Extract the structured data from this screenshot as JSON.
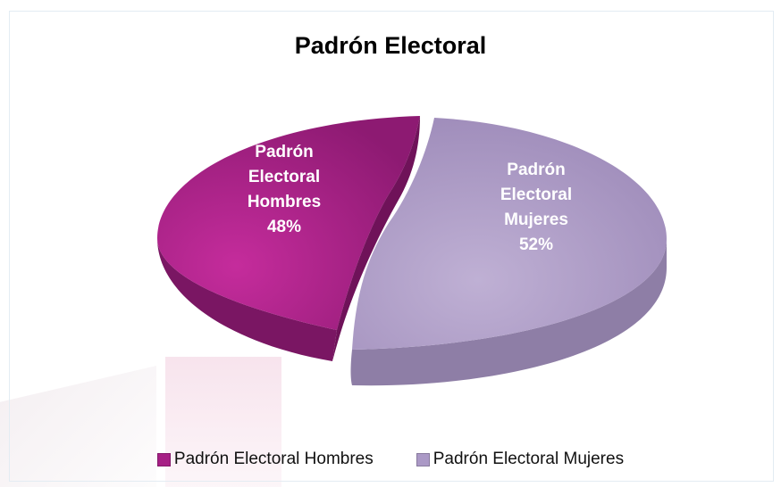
{
  "chart_data": {
    "type": "pie",
    "title": "Padrón Electoral",
    "slices": [
      {
        "name": "Padrón Electoral Hombres",
        "label_lines": [
          "Padrón",
          "Electoral",
          "Hombres",
          "48%"
        ],
        "value": 48,
        "color": "#a61f85"
      },
      {
        "name": "Padrón Electoral Mujeres",
        "label_lines": [
          "Padrón",
          "Electoral",
          "Mujeres",
          "52%"
        ],
        "value": 52,
        "color": "#ab99c6"
      }
    ],
    "legend_position": "bottom"
  }
}
